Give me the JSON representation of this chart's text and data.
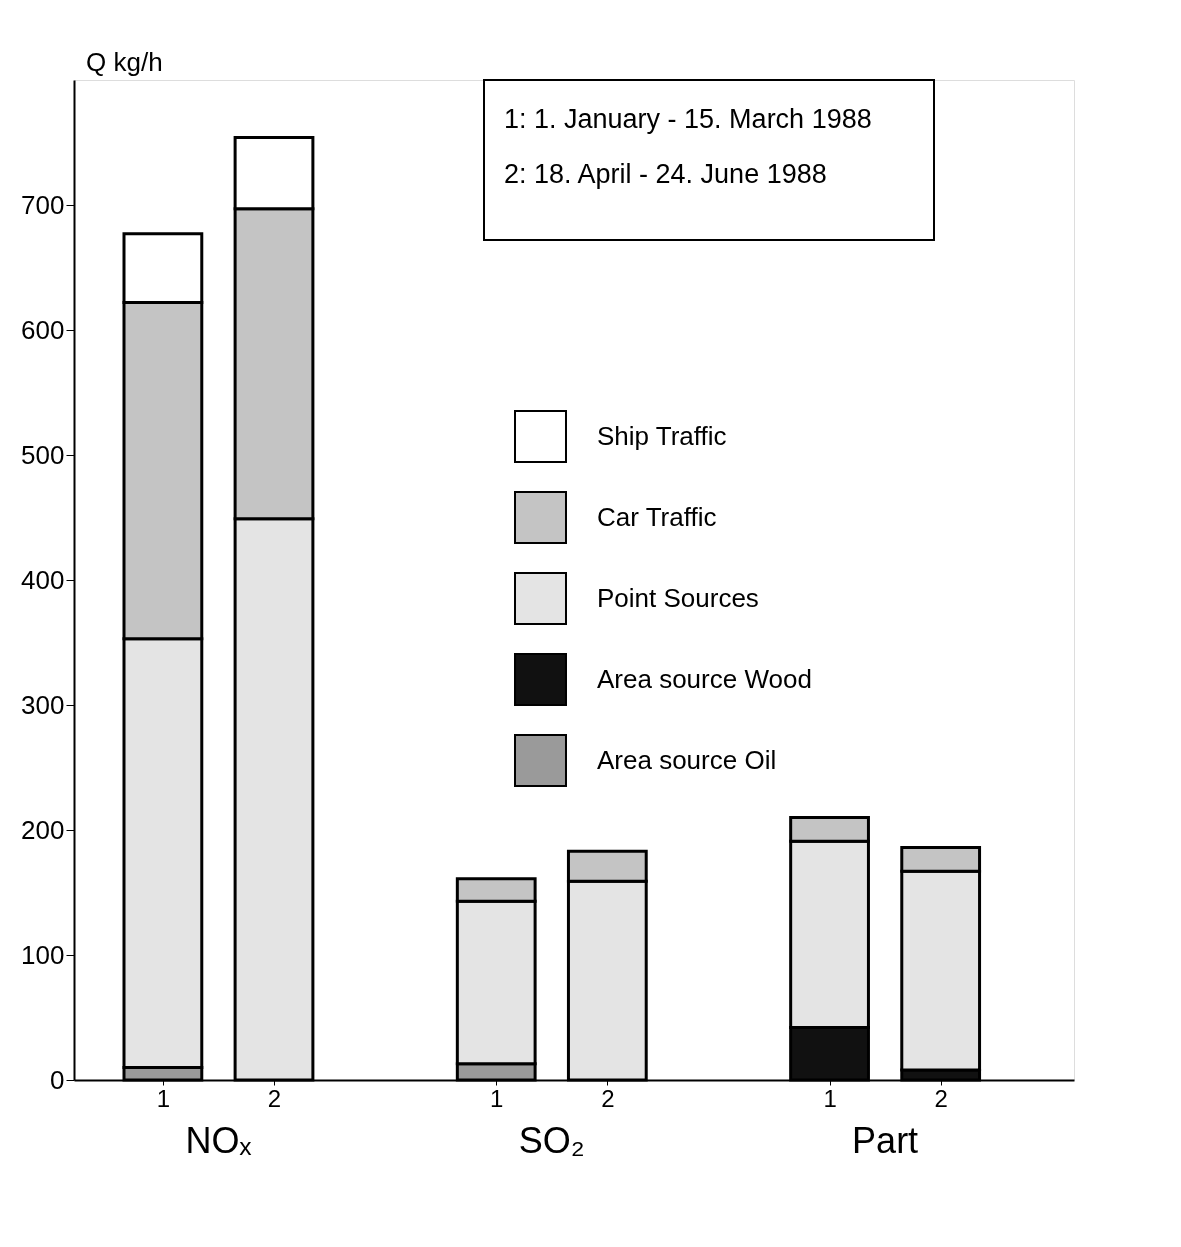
{
  "chart_data": {
    "type": "bar",
    "stacked": true,
    "ylabel": "Q kg/h",
    "categories": [
      "1",
      "2",
      "1",
      "2",
      "1",
      "2"
    ],
    "series": [
      {
        "name": "Area source Oil",
        "color": "#9a9a9a",
        "values": [
          10,
          0,
          13,
          0,
          0,
          0
        ]
      },
      {
        "name": "Area source Wood",
        "color": "#111111",
        "values": [
          0,
          0,
          0,
          0,
          42,
          8
        ]
      },
      {
        "name": "Point Sources",
        "color": "#e4e4e4",
        "values": [
          343,
          449,
          130,
          159,
          149,
          159
        ]
      },
      {
        "name": "Car Traffic",
        "color": "#c4c4c4",
        "values": [
          269,
          248,
          18,
          24,
          19,
          19
        ]
      },
      {
        "name": "Ship Traffic",
        "color": "#ffffff",
        "values": [
          55,
          57,
          0,
          0,
          0,
          0
        ]
      }
    ],
    "ylim": [
      0,
      800
    ],
    "yticks": [
      0,
      100,
      200,
      300,
      400,
      500,
      600,
      700
    ],
    "grid": false,
    "legend": "right",
    "annotations": [
      "1: 1. January - 15. March 1988",
      "2: 18. April    - 24. June 1988",
      "NOₓ",
      "SO₂",
      "Part"
    ]
  }
}
